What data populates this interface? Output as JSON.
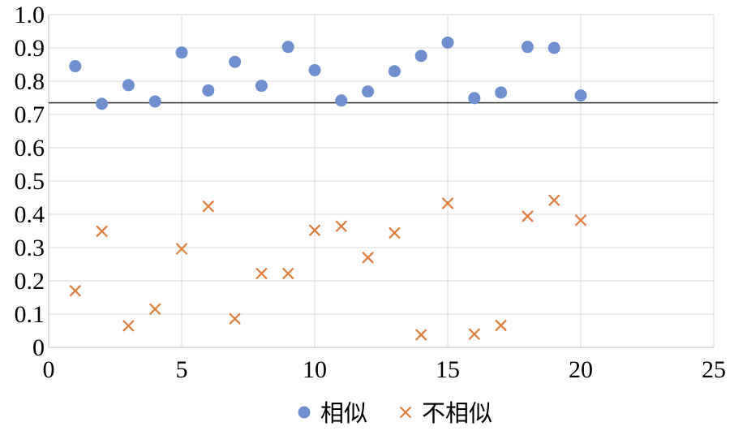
{
  "chart_data": {
    "type": "scatter",
    "title": "",
    "xlabel": "",
    "ylabel": "",
    "xlim": [
      0,
      25
    ],
    "ylim": [
      0,
      1.0
    ],
    "x_ticks": [
      "0",
      "5",
      "10",
      "15",
      "20",
      "25"
    ],
    "y_ticks": [
      "0",
      "0.1",
      "0.2",
      "0.3",
      "0.4",
      "0.5",
      "0.6",
      "0.7",
      "0.8",
      "0.9",
      "1.0"
    ],
    "grid": true,
    "legend_position": "bottom",
    "reference_line": {
      "y": 0.735,
      "color": "#333333"
    },
    "series": [
      {
        "name": "相似",
        "marker": "circle",
        "color": "#6F8FCF",
        "x": [
          1,
          2,
          3,
          4,
          5,
          6,
          7,
          8,
          9,
          10,
          11,
          12,
          13,
          14,
          15,
          16,
          17,
          18,
          19,
          20
        ],
        "y": [
          0.845,
          0.732,
          0.788,
          0.739,
          0.886,
          0.772,
          0.858,
          0.786,
          0.903,
          0.833,
          0.742,
          0.769,
          0.83,
          0.876,
          0.916,
          0.749,
          0.766,
          0.903,
          0.9,
          0.757
        ]
      },
      {
        "name": "不相似",
        "marker": "x",
        "color": "#E07B39",
        "x": [
          1,
          2,
          3,
          4,
          5,
          6,
          7,
          8,
          9,
          10,
          11,
          12,
          13,
          14,
          15,
          16,
          17,
          18,
          19,
          20
        ],
        "y": [
          0.17,
          0.349,
          0.065,
          0.115,
          0.296,
          0.424,
          0.086,
          0.222,
          0.222,
          0.352,
          0.364,
          0.27,
          0.344,
          0.038,
          0.433,
          0.04,
          0.066,
          0.394,
          0.442,
          0.382
        ]
      }
    ]
  }
}
